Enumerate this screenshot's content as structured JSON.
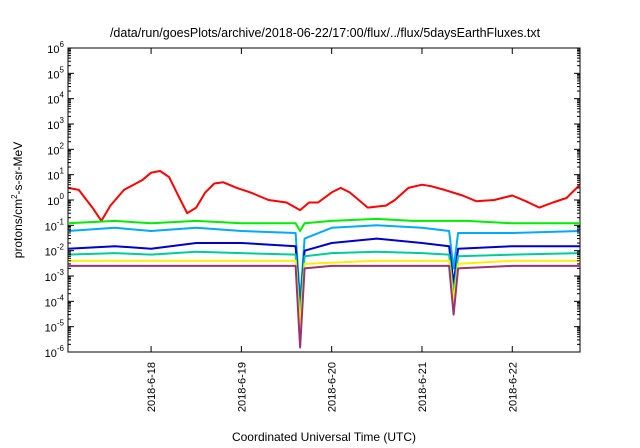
{
  "chart_data": {
    "type": "line",
    "title": "/data/run/goesPlots/archive/2018-06-22/17:00/flux/../flux/5daysEarthFluxes.txt",
    "xlabel": "Coordinated Universal Time (UTC)",
    "ylabel_parts": [
      "protons/cm",
      "2",
      "-s-sr-MeV"
    ],
    "y_scale": "log",
    "ylim": [
      1e-06,
      1000000.0
    ],
    "y_tick_exponents": [
      "-6",
      "-5",
      "-4",
      "-3",
      "-2",
      "-1",
      "0",
      "1",
      "2",
      "3",
      "4",
      "5",
      "6"
    ],
    "y_tick_base": "10",
    "x_unit": "days since 2018-06-17 00:00 UTC",
    "xlim": [
      0.08,
      5.75
    ],
    "x_ticks": [
      {
        "day": 1,
        "label": "2018-6-18"
      },
      {
        "day": 2,
        "label": "2018-6-19"
      },
      {
        "day": 3,
        "label": "2018-6-20"
      },
      {
        "day": 4,
        "label": "2018-6-21"
      },
      {
        "day": 5,
        "label": "2018-6-22"
      }
    ],
    "grid": false,
    "legend": "none",
    "series": [
      {
        "color": "#ff0000",
        "points": [
          [
            0.08,
            3.0
          ],
          [
            0.2,
            2.5
          ],
          [
            0.35,
            0.5
          ],
          [
            0.45,
            0.15
          ],
          [
            0.55,
            0.6
          ],
          [
            0.7,
            2.5
          ],
          [
            0.9,
            6
          ],
          [
            1.0,
            12
          ],
          [
            1.1,
            14
          ],
          [
            1.2,
            8
          ],
          [
            1.3,
            1.5
          ],
          [
            1.4,
            0.3
          ],
          [
            1.5,
            0.5
          ],
          [
            1.6,
            2.0
          ],
          [
            1.7,
            4.5
          ],
          [
            1.8,
            5.0
          ],
          [
            1.95,
            3.0
          ],
          [
            2.1,
            2.0
          ],
          [
            2.3,
            1.0
          ],
          [
            2.5,
            0.8
          ],
          [
            2.65,
            0.4
          ],
          [
            2.75,
            0.8
          ],
          [
            2.85,
            0.8
          ],
          [
            3.0,
            2.0
          ],
          [
            3.1,
            3.0
          ],
          [
            3.2,
            2.0
          ],
          [
            3.4,
            0.5
          ],
          [
            3.6,
            0.6
          ],
          [
            3.7,
            1.0
          ],
          [
            3.85,
            3.0
          ],
          [
            4.0,
            4.0
          ],
          [
            4.1,
            3.5
          ],
          [
            4.25,
            2.5
          ],
          [
            4.45,
            1.5
          ],
          [
            4.6,
            0.9
          ],
          [
            4.8,
            1.0
          ],
          [
            5.0,
            1.5
          ],
          [
            5.15,
            0.9
          ],
          [
            5.3,
            0.5
          ],
          [
            5.45,
            0.8
          ],
          [
            5.6,
            1.2
          ],
          [
            5.75,
            4.0
          ]
        ]
      },
      {
        "color": "#00ee00",
        "points": [
          [
            0.08,
            0.12
          ],
          [
            0.6,
            0.15
          ],
          [
            1.0,
            0.12
          ],
          [
            1.5,
            0.15
          ],
          [
            2.0,
            0.12
          ],
          [
            2.6,
            0.12
          ],
          [
            2.65,
            0.06
          ],
          [
            2.7,
            0.12
          ],
          [
            3.0,
            0.15
          ],
          [
            3.5,
            0.18
          ],
          [
            3.9,
            0.15
          ],
          [
            4.5,
            0.15
          ],
          [
            5.0,
            0.12
          ],
          [
            5.5,
            0.12
          ],
          [
            5.75,
            0.12
          ]
        ]
      },
      {
        "color": "#00aaff",
        "points": [
          [
            0.08,
            0.06
          ],
          [
            0.6,
            0.08
          ],
          [
            1.0,
            0.06
          ],
          [
            1.5,
            0.08
          ],
          [
            2.0,
            0.06
          ],
          [
            2.6,
            0.05
          ],
          [
            2.65,
            0.0001
          ],
          [
            2.7,
            0.03
          ],
          [
            3.0,
            0.08
          ],
          [
            3.5,
            0.1
          ],
          [
            4.0,
            0.08
          ],
          [
            4.3,
            0.06
          ],
          [
            4.35,
            0.002
          ],
          [
            4.4,
            0.05
          ],
          [
            5.0,
            0.05
          ],
          [
            5.75,
            0.06
          ]
        ]
      },
      {
        "color": "#0000cc",
        "points": [
          [
            0.08,
            0.012
          ],
          [
            0.6,
            0.015
          ],
          [
            1.0,
            0.012
          ],
          [
            1.5,
            0.02
          ],
          [
            2.0,
            0.02
          ],
          [
            2.6,
            0.015
          ],
          [
            2.65,
            5e-05
          ],
          [
            2.7,
            0.01
          ],
          [
            3.0,
            0.02
          ],
          [
            3.5,
            0.03
          ],
          [
            4.0,
            0.02
          ],
          [
            4.3,
            0.015
          ],
          [
            4.35,
            0.0005
          ],
          [
            4.4,
            0.012
          ],
          [
            5.0,
            0.015
          ],
          [
            5.75,
            0.015
          ]
        ]
      },
      {
        "color": "#00cc99",
        "points": [
          [
            0.08,
            0.007
          ],
          [
            0.6,
            0.008
          ],
          [
            1.0,
            0.007
          ],
          [
            1.5,
            0.009
          ],
          [
            2.0,
            0.008
          ],
          [
            2.6,
            0.007
          ],
          [
            2.65,
            3e-05
          ],
          [
            2.7,
            0.006
          ],
          [
            3.0,
            0.008
          ],
          [
            3.5,
            0.009
          ],
          [
            4.0,
            0.008
          ],
          [
            4.3,
            0.007
          ],
          [
            4.35,
            0.0002
          ],
          [
            4.4,
            0.006
          ],
          [
            5.0,
            0.007
          ],
          [
            5.75,
            0.008
          ]
        ]
      },
      {
        "color": "#ffee00",
        "points": [
          [
            0.08,
            0.004
          ],
          [
            1.0,
            0.004
          ],
          [
            2.0,
            0.004
          ],
          [
            2.6,
            0.004
          ],
          [
            2.65,
            1e-05
          ],
          [
            2.7,
            0.003
          ],
          [
            3.5,
            0.004
          ],
          [
            4.3,
            0.004
          ],
          [
            4.35,
            0.0001
          ],
          [
            4.4,
            0.003
          ],
          [
            5.0,
            0.004
          ],
          [
            5.75,
            0.004
          ]
        ]
      },
      {
        "color": "#993377",
        "points": [
          [
            0.08,
            0.0025
          ],
          [
            0.5,
            0.0025
          ],
          [
            1.0,
            0.0025
          ],
          [
            1.5,
            0.0025
          ],
          [
            2.0,
            0.0025
          ],
          [
            2.6,
            0.0025
          ],
          [
            2.65,
            1.5e-06
          ],
          [
            2.7,
            0.002
          ],
          [
            3.0,
            0.0025
          ],
          [
            3.5,
            0.0025
          ],
          [
            4.0,
            0.0025
          ],
          [
            4.3,
            0.0025
          ],
          [
            4.35,
            3e-05
          ],
          [
            4.4,
            0.002
          ],
          [
            5.0,
            0.0025
          ],
          [
            5.75,
            0.0025
          ]
        ]
      }
    ]
  }
}
